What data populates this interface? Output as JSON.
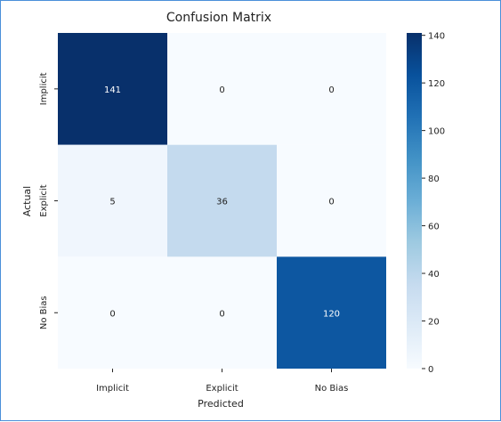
{
  "chart_data": {
    "type": "heatmap",
    "title": "Confusion Matrix",
    "xlabel": "Predicted",
    "ylabel": "Actual",
    "x_categories": [
      "Implicit",
      "Explicit",
      "No Bias"
    ],
    "y_categories": [
      "Implicit",
      "Explicit",
      "No Bias"
    ],
    "values": [
      [
        141,
        0,
        0
      ],
      [
        5,
        36,
        0
      ],
      [
        0,
        0,
        120
      ]
    ],
    "colormap": "Blues",
    "colorbar": {
      "min": 0,
      "max": 141,
      "ticks": [
        0,
        20,
        40,
        60,
        80,
        100,
        120,
        140
      ]
    }
  }
}
